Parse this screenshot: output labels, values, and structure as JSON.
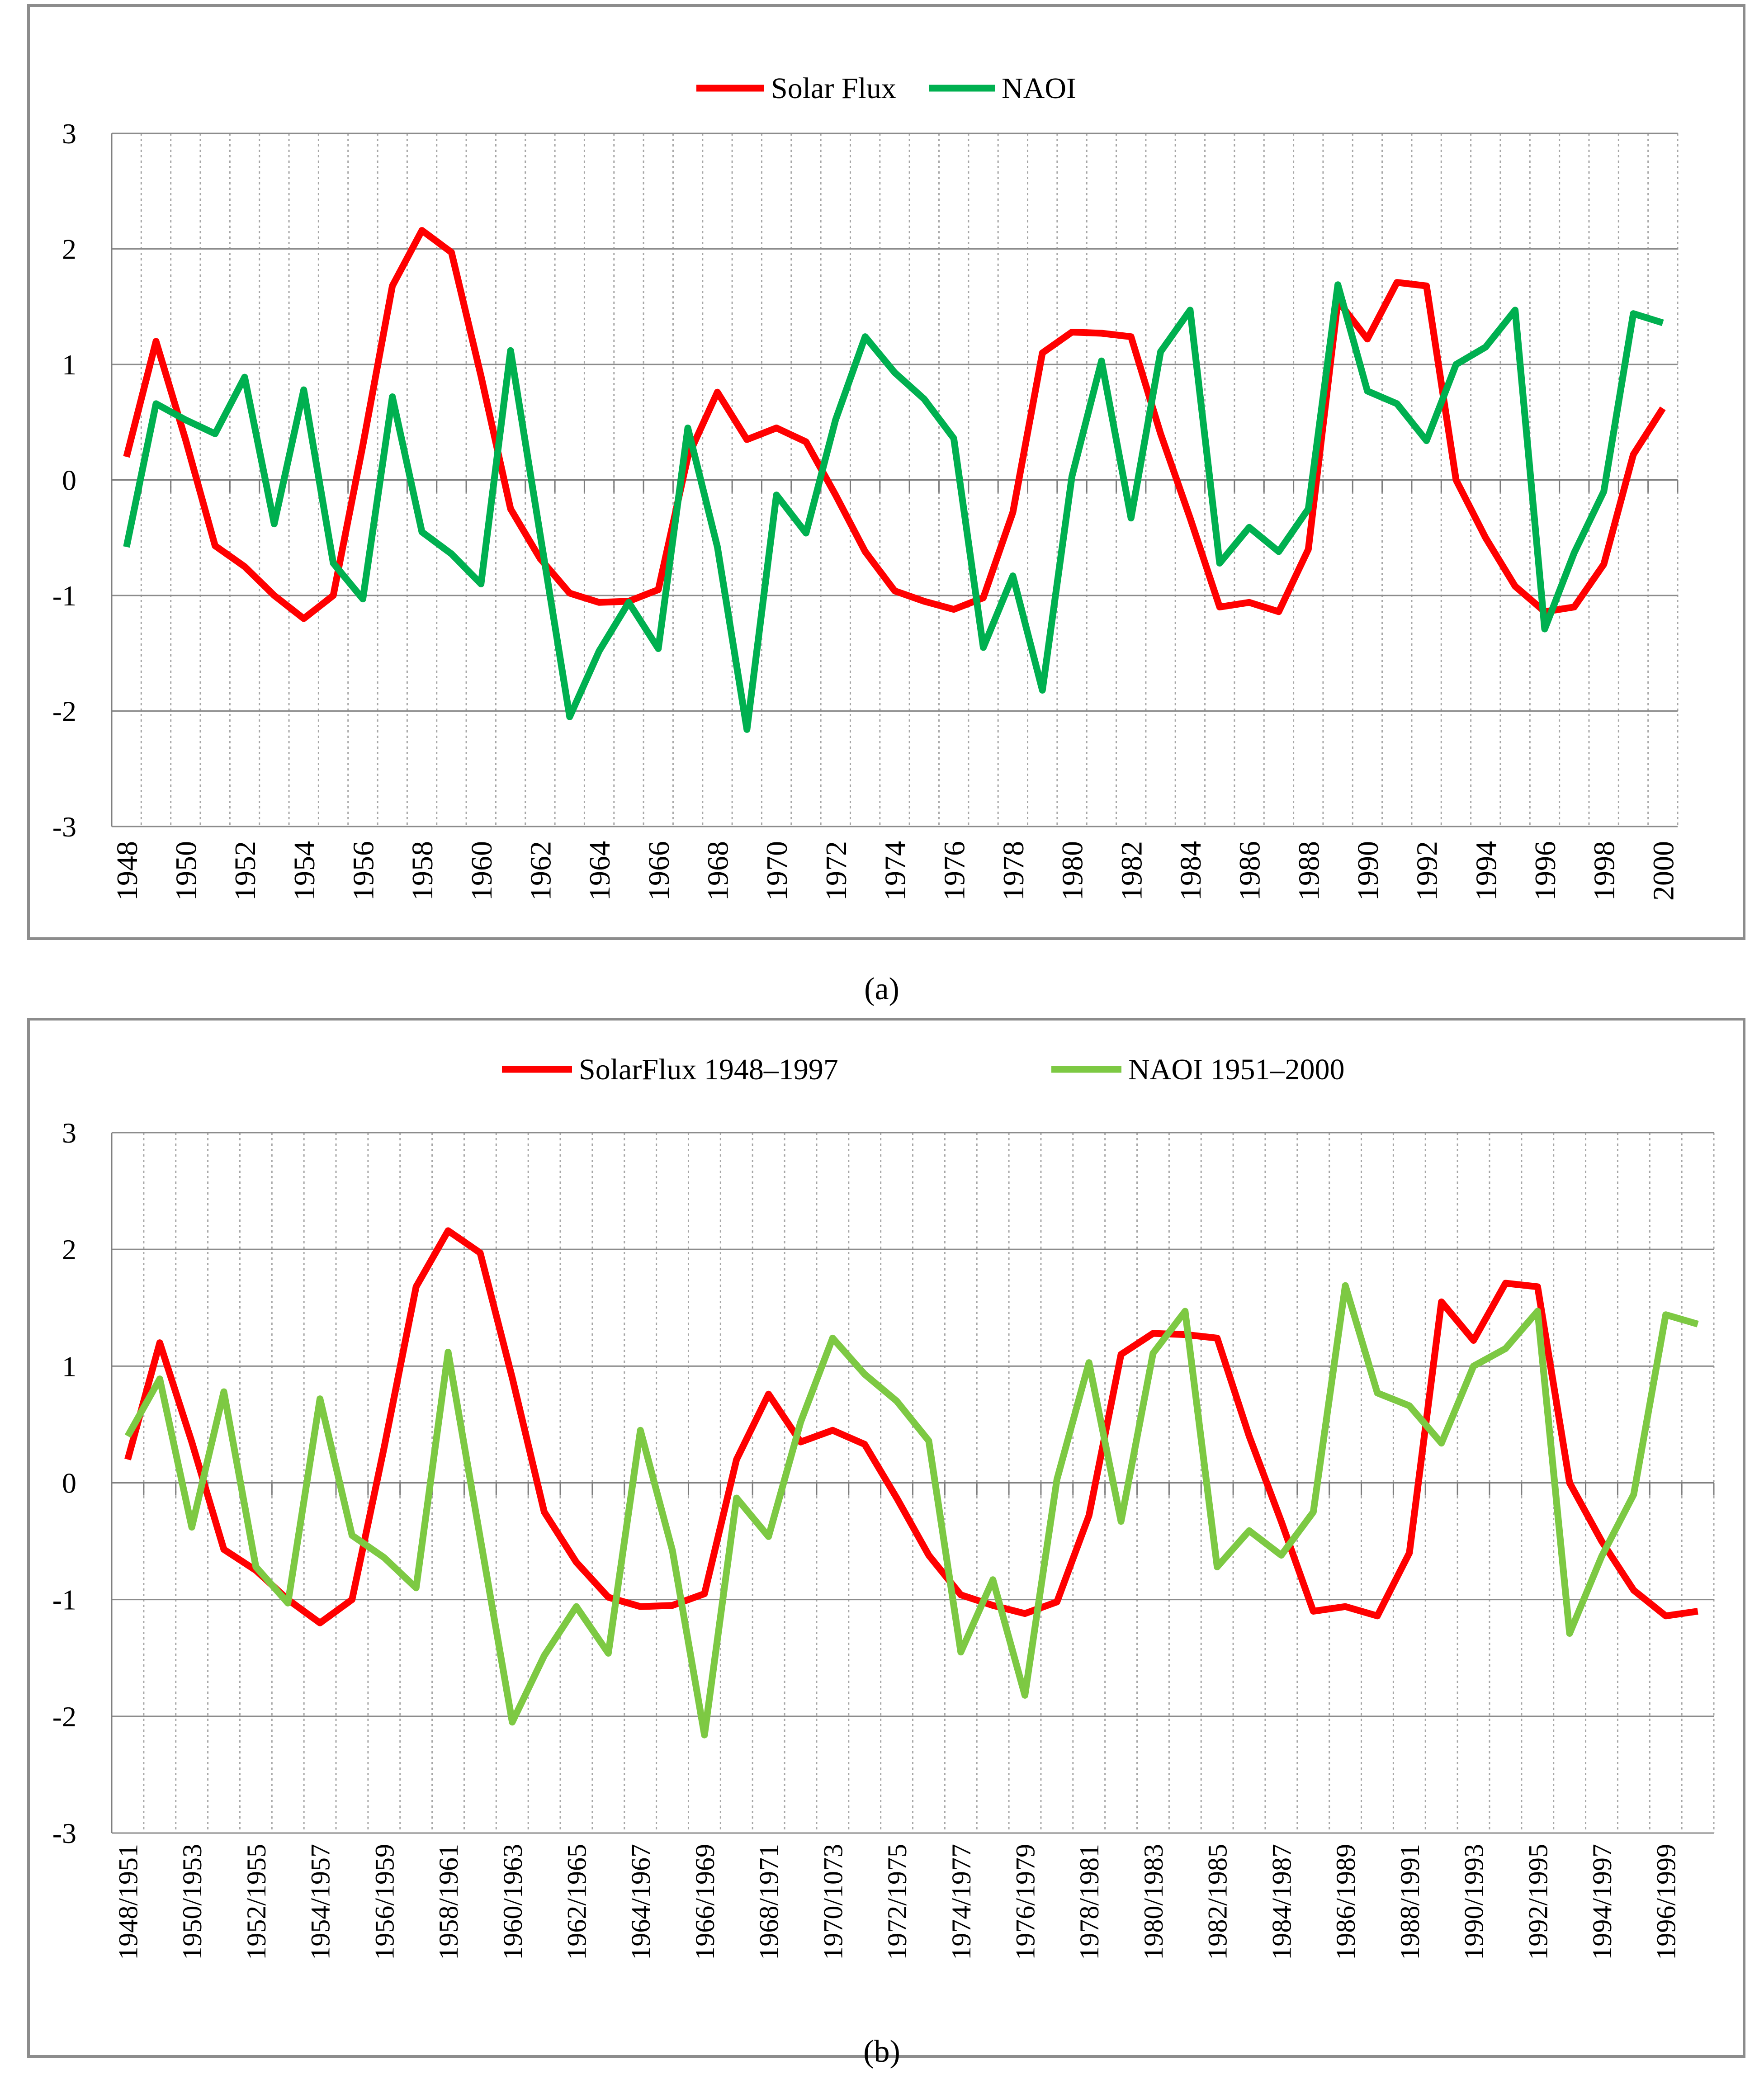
{
  "chart_data": [
    {
      "type": "line",
      "title": "",
      "caption": "(a)",
      "legend": [
        "Solar Flux",
        "NAOI"
      ],
      "categories": [
        "1948",
        "1949",
        "1950",
        "1951",
        "1952",
        "1953",
        "1954",
        "1955",
        "1956",
        "1957",
        "1958",
        "1959",
        "1960",
        "1961",
        "1962",
        "1963",
        "1964",
        "1965",
        "1966",
        "1967",
        "1968",
        "1969",
        "1970",
        "1971",
        "1972",
        "1973",
        "1974",
        "1975",
        "1976",
        "1977",
        "1978",
        "1979",
        "1980",
        "1981",
        "1982",
        "1983",
        "1984",
        "1985",
        "1986",
        "1987",
        "1988",
        "1989",
        "1990",
        "1991",
        "1992",
        "1993",
        "1994",
        "1995",
        "1996",
        "1997",
        "1998",
        "1999",
        "2000"
      ],
      "tick_labels": [
        "1948",
        "",
        "1950",
        "",
        "1952",
        "",
        "1954",
        "",
        "1956",
        "",
        "1958",
        "",
        "1960",
        "",
        "1962",
        "",
        "1964",
        "",
        "1966",
        "",
        "1968",
        "",
        "1970",
        "",
        "1972",
        "",
        "1974",
        "",
        "1976",
        "",
        "1978",
        "",
        "1980",
        "",
        "1982",
        "",
        "1984",
        "",
        "1986",
        "",
        "1988",
        "",
        "1990",
        "",
        "1992",
        "",
        "1994",
        "",
        "1996",
        "",
        "1998",
        "",
        "2000"
      ],
      "series": [
        {
          "name": "Solar Flux",
          "color": "#ff0000",
          "values": [
            0.2,
            1.2,
            0.35,
            -0.57,
            -0.75,
            -1.0,
            -1.2,
            -1.0,
            0.3,
            1.68,
            2.16,
            1.97,
            0.9,
            -0.25,
            -0.68,
            -0.98,
            -1.06,
            -1.05,
            -0.95,
            0.2,
            0.76,
            0.35,
            0.45,
            0.33,
            -0.13,
            -0.62,
            -0.96,
            -1.05,
            -1.12,
            -1.02,
            -0.28,
            1.1,
            1.28,
            1.27,
            1.24,
            0.4,
            -0.33,
            -1.1,
            -1.06,
            -1.14,
            -0.6,
            1.55,
            1.22,
            1.71,
            1.68,
            0.0,
            -0.5,
            -0.92,
            -1.14,
            -1.1,
            -0.73,
            0.22,
            0.62
          ]
        },
        {
          "name": "NAOI",
          "color": "#00b050",
          "values": [
            -0.58,
            0.66,
            0.52,
            0.4,
            0.89,
            -0.38,
            0.78,
            -0.72,
            -1.03,
            0.72,
            -0.45,
            -0.64,
            -0.9,
            1.12,
            -0.47,
            -2.05,
            -1.48,
            -1.06,
            -1.46,
            0.45,
            -0.58,
            -2.16,
            -0.13,
            -0.46,
            0.52,
            1.24,
            0.93,
            0.7,
            0.36,
            -1.45,
            -0.83,
            -1.82,
            0.03,
            1.03,
            -0.33,
            1.11,
            1.47,
            -0.72,
            -0.41,
            -0.62,
            -0.25,
            1.69,
            0.77,
            0.66,
            0.34,
            1.0,
            1.15,
            1.47,
            -1.29,
            -0.63,
            -0.1,
            1.44,
            1.36
          ]
        }
      ],
      "ylim": [
        -3,
        3
      ],
      "yticks": [
        "3",
        "2",
        "1",
        "0",
        "-1",
        "-2",
        "-3"
      ],
      "xlabel": "",
      "ylabel": "",
      "grid": true
    },
    {
      "type": "line",
      "title": "",
      "caption": "(b)",
      "legend": [
        "SolarFlux 1948–1997",
        "NAOI 1951–2000"
      ],
      "categories": [
        "1948/1951",
        "1949/1952",
        "1950/1953",
        "1951/1954",
        "1952/1955",
        "1953/1956",
        "1954/1957",
        "1955/1958",
        "1956/1959",
        "1957/1960",
        "1958/1961",
        "1959/1962",
        "1960/1963",
        "1961/1964",
        "1962/1965",
        "1963/1966",
        "1964/1967",
        "1965/1968",
        "1966/1969",
        "1967/1970",
        "1968/1971",
        "1969/1972",
        "1970/1073",
        "1971/1974",
        "1972/1975",
        "1973/1976",
        "1974/1977",
        "1975/1978",
        "1976/1979",
        "1977/1980",
        "1978/1981",
        "1979/1982",
        "1980/1983",
        "1981/1984",
        "1982/1985",
        "1983/1986",
        "1984/1987",
        "1985/1988",
        "1986/1989",
        "1987/1990",
        "1988/1991",
        "1989/1992",
        "1990/1993",
        "1991/1994",
        "1992/1995",
        "1993/1996",
        "1994/1997",
        "1995/1998",
        "1996/1999",
        "1997/2000"
      ],
      "tick_labels": [
        "1948/1951",
        "",
        "1950/1953",
        "",
        "1952/1955",
        "",
        "1954/1957",
        "",
        "1956/1959",
        "",
        "1958/1961",
        "",
        "1960/1963",
        "",
        "1962/1965",
        "",
        "1964/1967",
        "",
        "1966/1969",
        "",
        "1968/1971",
        "",
        "1970/1073",
        "",
        "1972/1975",
        "",
        "1974/1977",
        "",
        "1976/1979",
        "",
        "1978/1981",
        "",
        "1980/1983",
        "",
        "1982/1985",
        "",
        "1984/1987",
        "",
        "1986/1989",
        "",
        "1988/1991",
        "",
        "1990/1993",
        "",
        "1992/1995",
        "",
        "1994/1997",
        "",
        "1996/1999",
        ""
      ],
      "series": [
        {
          "name": "SolarFlux 1948–1997",
          "color": "#ff0000",
          "values": [
            0.2,
            1.2,
            0.35,
            -0.57,
            -0.75,
            -1.0,
            -1.2,
            -1.0,
            0.3,
            1.68,
            2.16,
            1.97,
            0.9,
            -0.25,
            -0.68,
            -0.98,
            -1.06,
            -1.05,
            -0.95,
            0.2,
            0.76,
            0.35,
            0.45,
            0.33,
            -0.13,
            -0.62,
            -0.96,
            -1.05,
            -1.12,
            -1.02,
            -0.28,
            1.1,
            1.28,
            1.27,
            1.24,
            0.4,
            -0.33,
            -1.1,
            -1.06,
            -1.14,
            -0.6,
            1.55,
            1.22,
            1.71,
            1.68,
            0.0,
            -0.5,
            -0.92,
            -1.14,
            -1.1
          ]
        },
        {
          "name": "NAOI 1951–2000",
          "color": "#7dc943",
          "values": [
            0.4,
            0.89,
            -0.38,
            0.78,
            -0.72,
            -1.03,
            0.72,
            -0.45,
            -0.64,
            -0.9,
            1.12,
            -0.47,
            -2.05,
            -1.48,
            -1.06,
            -1.46,
            0.45,
            -0.58,
            -2.16,
            -0.13,
            -0.46,
            0.52,
            1.24,
            0.93,
            0.7,
            0.36,
            -1.45,
            -0.83,
            -1.82,
            0.03,
            1.03,
            -0.33,
            1.11,
            1.47,
            -0.72,
            -0.41,
            -0.62,
            -0.25,
            1.69,
            0.77,
            0.66,
            0.34,
            1.0,
            1.15,
            1.47,
            -1.29,
            -0.63,
            -0.1,
            1.44,
            1.36
          ]
        }
      ],
      "ylim": [
        -3,
        3
      ],
      "yticks": [
        "3",
        "2",
        "1",
        "0",
        "-1",
        "-2",
        "-3"
      ],
      "xlabel": "",
      "ylabel": "",
      "grid": true
    }
  ]
}
